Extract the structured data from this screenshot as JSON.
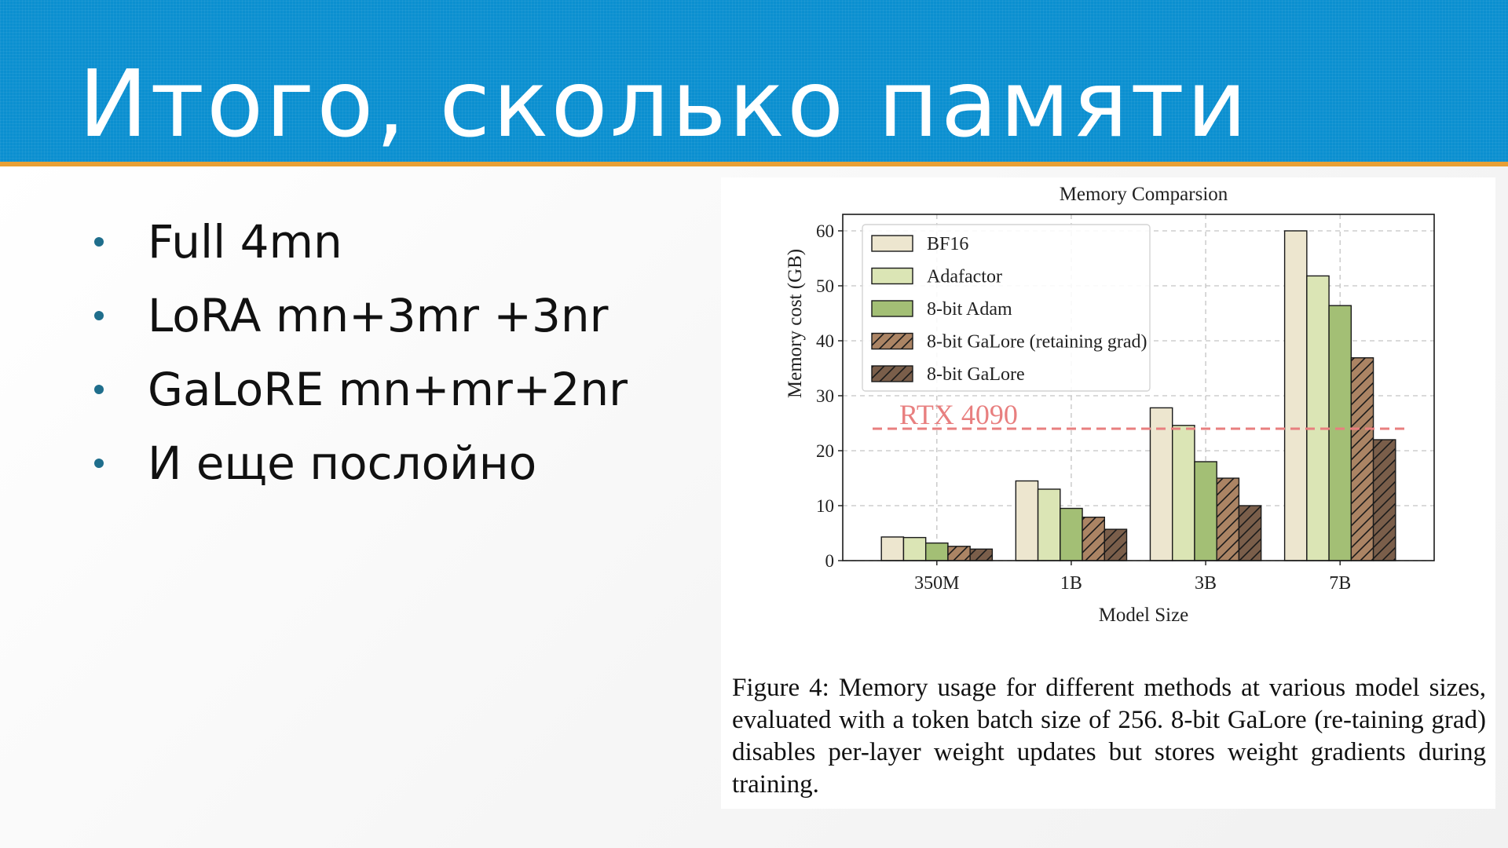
{
  "slide": {
    "title": "Итого, сколько памяти",
    "bullets": [
      "Full 4mn",
      "LoRA mn+3mr +3nr",
      "GaLoRE mn+mr+2nr",
      "И еще послойно"
    ]
  },
  "figure": {
    "caption_label": "Figure 4:",
    "caption_text": "Memory usage for different methods at various model sizes, evaluated with a token batch size of 256. 8-bit GaLore (re-taining grad) disables per-layer weight updates but stores weight gradients during training."
  },
  "chart_data": {
    "type": "bar",
    "title": "Memory Comparsion",
    "xlabel": "Model Size",
    "ylabel": "Memory cost (GB)",
    "categories": [
      "350M",
      "1B",
      "3B",
      "7B"
    ],
    "ylim": [
      0,
      63
    ],
    "yticks": [
      0,
      10,
      20,
      30,
      40,
      50,
      60
    ],
    "grid": true,
    "legend_position": "top-left",
    "series": [
      {
        "name": "BF16",
        "values": [
          4.3,
          14.5,
          27.8,
          60.0
        ],
        "color": "#ede6cf",
        "hatch": false
      },
      {
        "name": "Adafactor",
        "values": [
          4.2,
          13.0,
          24.6,
          51.8
        ],
        "color": "#dbe5b5",
        "hatch": false
      },
      {
        "name": "8-bit Adam",
        "values": [
          3.2,
          9.5,
          18.0,
          46.4
        ],
        "color": "#a3bf75",
        "hatch": false
      },
      {
        "name": "8-bit GaLore (retaining grad)",
        "values": [
          2.6,
          7.9,
          15.0,
          36.9
        ],
        "color": "#ab8464",
        "hatch": true
      },
      {
        "name": "8-bit GaLore",
        "values": [
          2.1,
          5.7,
          10.0,
          22.0
        ],
        "color": "#7a5e4a",
        "hatch": true
      }
    ],
    "reference_line": {
      "label": "RTX 4090",
      "value": 24,
      "color": "#e87f7f"
    }
  }
}
